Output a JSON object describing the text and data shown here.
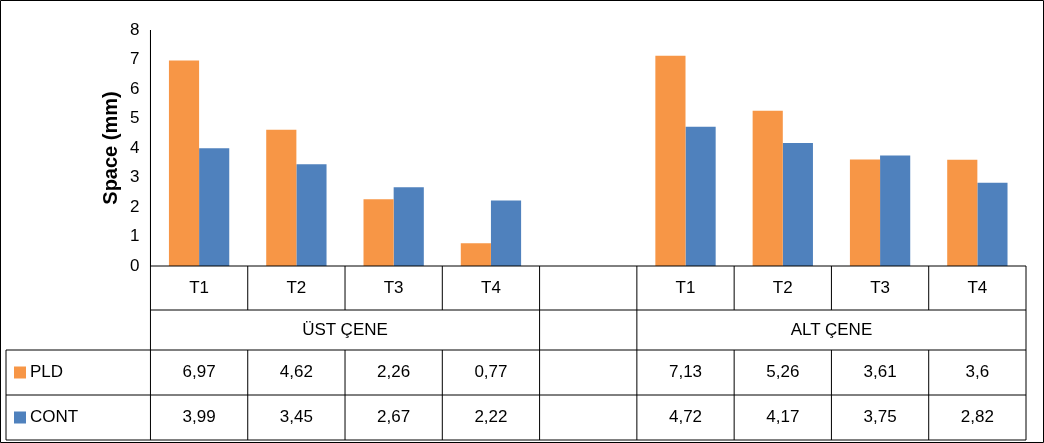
{
  "chart_data": {
    "type": "bar",
    "ylabel": "Space (mm)",
    "categories": [
      "T1",
      "T2",
      "T3",
      "T4",
      null,
      "T1",
      "T2",
      "T3",
      "T4"
    ],
    "series": [
      {
        "name": "PLD",
        "color": "#f79646",
        "values": [
          6.97,
          4.62,
          2.26,
          0.77,
          null,
          7.13,
          5.26,
          3.61,
          3.6
        ],
        "value_labels": [
          "6,97",
          "4,62",
          "2,26",
          "0,77",
          null,
          "7,13",
          "5,26",
          "3,61",
          "3,6"
        ]
      },
      {
        "name": "CONT",
        "color": "#4f81bd",
        "values": [
          3.99,
          3.45,
          2.67,
          2.22,
          null,
          4.72,
          4.17,
          3.75,
          2.82
        ],
        "value_labels": [
          "3,99",
          "3,45",
          "2,67",
          "2,22",
          null,
          "4,72",
          "4,17",
          "3,75",
          "2,82"
        ]
      }
    ],
    "annotations": [
      "ÜST ÇENE",
      "ALT ÇENE"
    ],
    "ylim": [
      0,
      8
    ],
    "yticks": [
      0,
      1,
      2,
      3,
      4,
      5,
      6,
      7,
      8
    ],
    "grid": false,
    "legend": "bottom"
  }
}
